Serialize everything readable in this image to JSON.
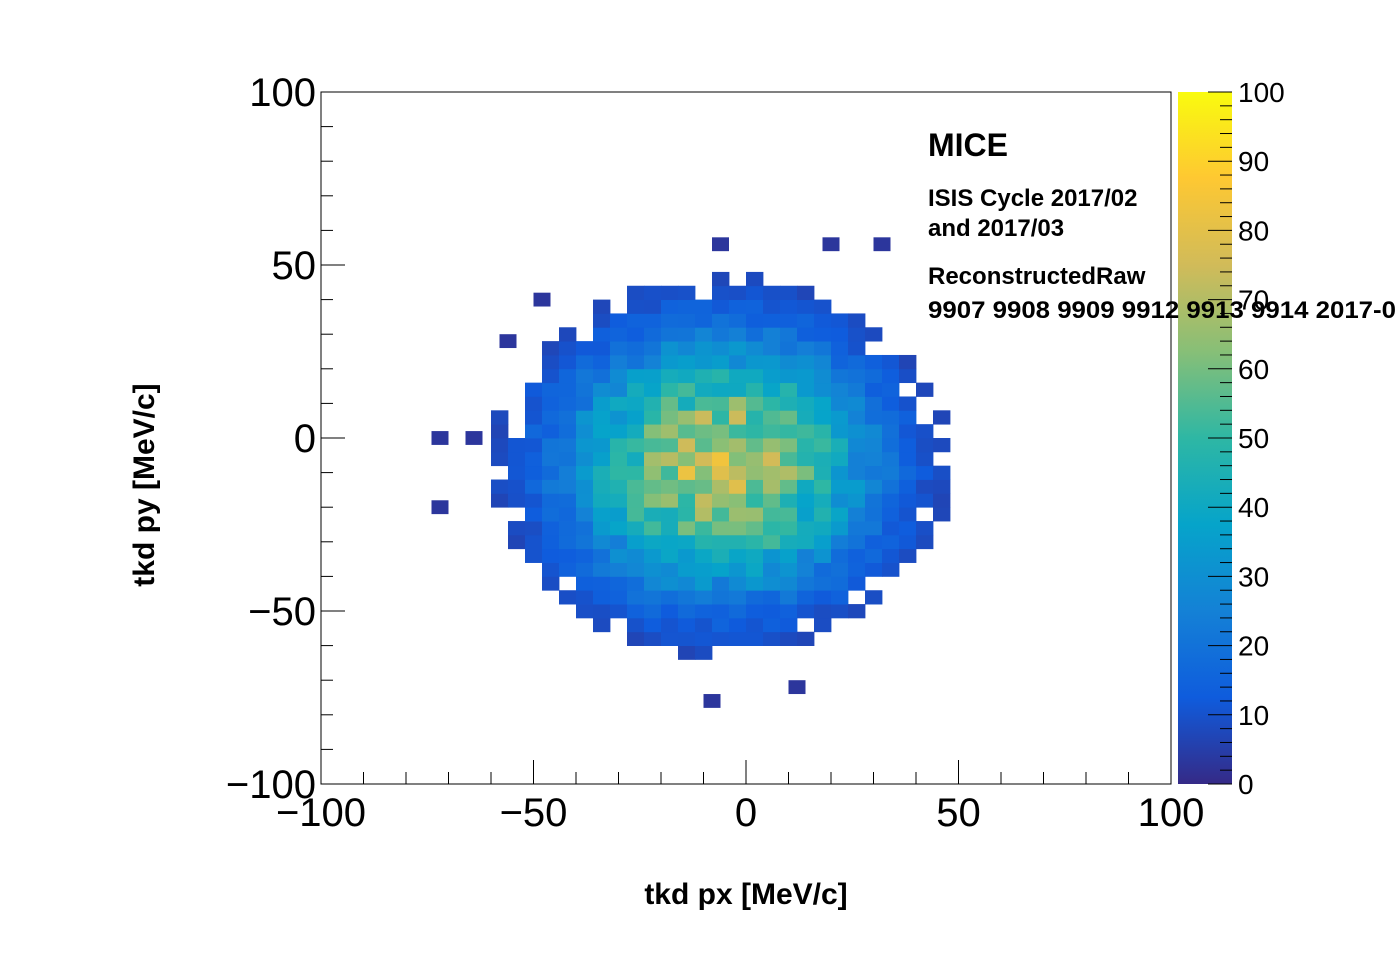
{
  "chart_data": {
    "type": "heatmap",
    "xlabel": "tkd px [MeV/c]",
    "ylabel": "tkd py [MeV/c]",
    "xlim": [
      -100,
      100
    ],
    "ylim": [
      -100,
      100
    ],
    "x_ticks": [
      -100,
      -50,
      0,
      50,
      100
    ],
    "y_ticks": [
      -100,
      -50,
      0,
      50,
      100
    ],
    "x_tick_labels": [
      "−100",
      "−50",
      "0",
      "50",
      "100"
    ],
    "y_tick_labels": [
      "−100",
      "−50",
      "0",
      "50",
      "100"
    ],
    "bins": {
      "nx": 50,
      "ny": 50,
      "width": 4
    },
    "colorbar": {
      "min": 0,
      "max": 100,
      "ticks": [
        0,
        10,
        20,
        30,
        40,
        50,
        60,
        70,
        80,
        90,
        100
      ],
      "colormap": "parula",
      "stops": [
        "#352a87",
        "#0f5cdd",
        "#1481d6",
        "#06a4ca",
        "#2eb7a4",
        "#87bf77",
        "#d1bb59",
        "#fec832",
        "#f9fb0e"
      ]
    },
    "annotations": {
      "experiment": "MICE",
      "cycle_line1": "ISIS Cycle 2017/02",
      "cycle_line2": "and 2017/03",
      "dataset": "ReconstructedRaw",
      "runs": "9907 9908 9909 9912 9913 9914 2017-0"
    },
    "distribution": {
      "center": [
        -6,
        -8
      ],
      "radius_x": 54,
      "radius_y": 55,
      "peak_count": 72
    },
    "outlier_bins": [
      [
        -74,
        -2
      ],
      [
        -66,
        -2
      ],
      [
        -74,
        -22
      ],
      [
        -10,
        -78
      ],
      [
        10,
        -74
      ],
      [
        -58,
        26
      ],
      [
        -50,
        38
      ],
      [
        30,
        54
      ],
      [
        18,
        54
      ],
      [
        -8,
        54
      ]
    ]
  }
}
